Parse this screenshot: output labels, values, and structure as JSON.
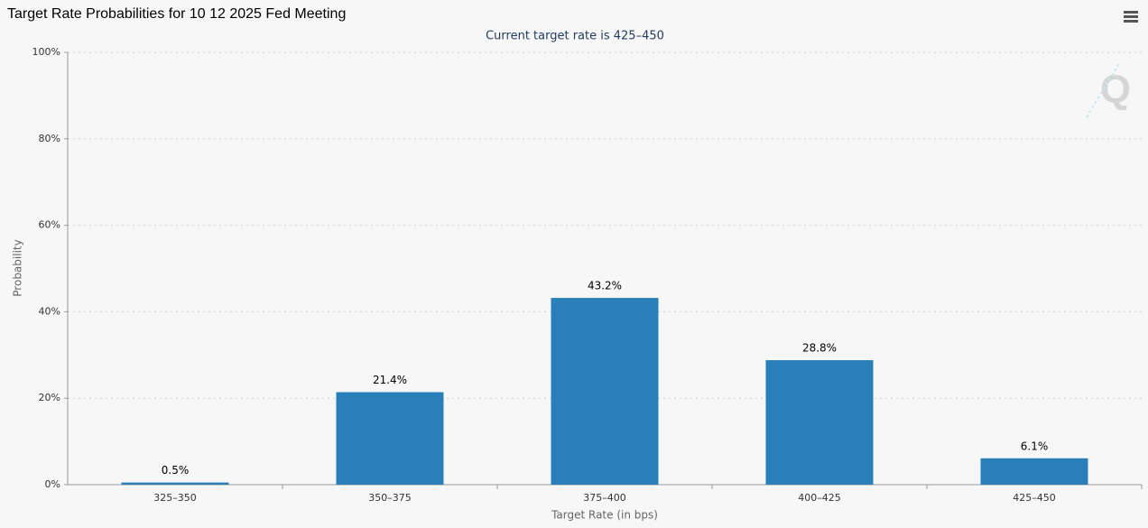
{
  "chart_data": {
    "type": "bar",
    "title": "Target Rate Probabilities for 10 12 2025 Fed Meeting",
    "subtitle": "Current target rate is 425–450",
    "x_label": "Target Rate (in bps)",
    "y_label": "Probability",
    "categories": [
      "325–350",
      "350–375",
      "375–400",
      "400–425",
      "425–450"
    ],
    "values": [
      0.5,
      21.4,
      43.2,
      28.8,
      6.1
    ],
    "value_labels": [
      "0.5%",
      "21.4%",
      "43.2%",
      "28.8%",
      "6.1%"
    ],
    "color": "#2980b9",
    "ylim": [
      0,
      100
    ],
    "yticks": [
      {
        "value": 0,
        "label": "0%"
      },
      {
        "value": 20,
        "label": "20%"
      },
      {
        "value": 40,
        "label": "40%"
      },
      {
        "value": 60,
        "label": "60%"
      },
      {
        "value": 80,
        "label": "80%"
      },
      {
        "value": 100,
        "label": "100%"
      }
    ],
    "grid": true
  }
}
